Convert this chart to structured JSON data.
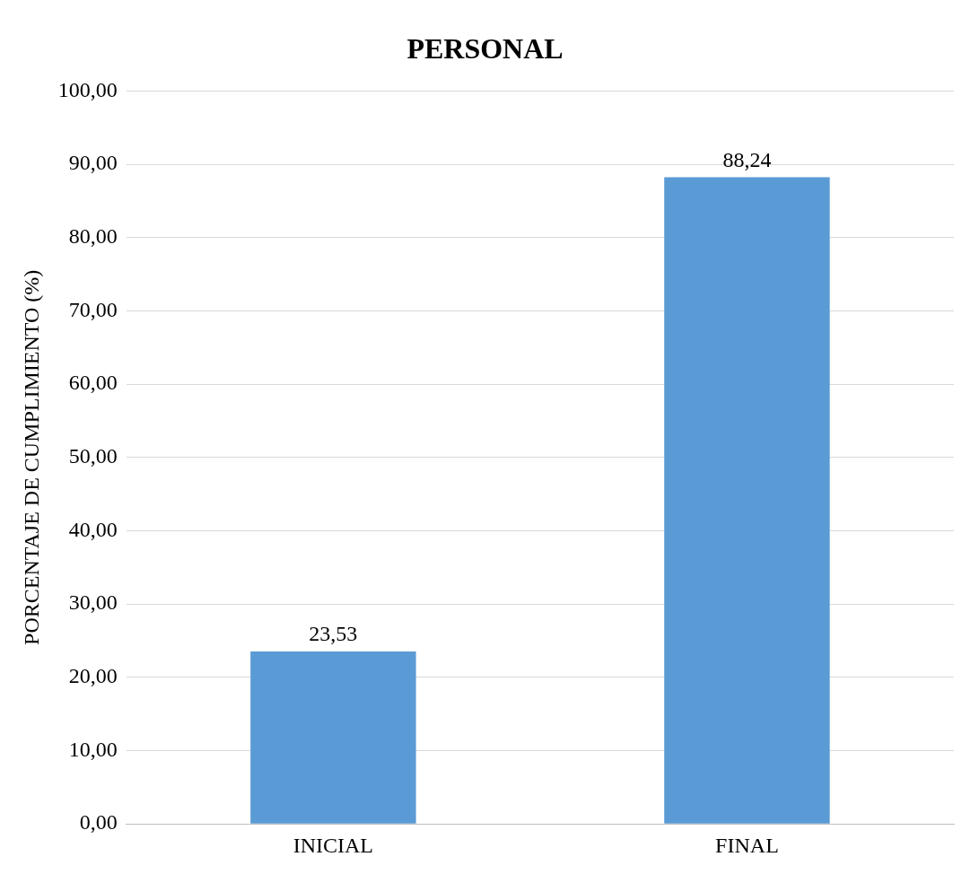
{
  "chart_data": {
    "type": "bar",
    "title": "PERSONAL",
    "ylabel": "PORCENTAJE DE CUMPLIMIENTO (%)",
    "categories": [
      "INICIAL",
      "FINAL"
    ],
    "values": [
      23.53,
      88.24
    ],
    "color": "#5b9bd5",
    "value_labels": [
      "23,53",
      "88,24"
    ],
    "ylim": [
      0,
      100
    ],
    "yticks": [
      {
        "value": 0,
        "label": "0,00"
      },
      {
        "value": 10,
        "label": "10,00"
      },
      {
        "value": 20,
        "label": "20,00"
      },
      {
        "value": 30,
        "label": "30,00"
      },
      {
        "value": 40,
        "label": "40,00"
      },
      {
        "value": 50,
        "label": "50,00"
      },
      {
        "value": 60,
        "label": "60,00"
      },
      {
        "value": 70,
        "label": "70,00"
      },
      {
        "value": 80,
        "label": "80,00"
      },
      {
        "value": 90,
        "label": "90,00"
      },
      {
        "value": 100,
        "label": "100,00"
      }
    ],
    "grid": "y",
    "legend": false
  }
}
